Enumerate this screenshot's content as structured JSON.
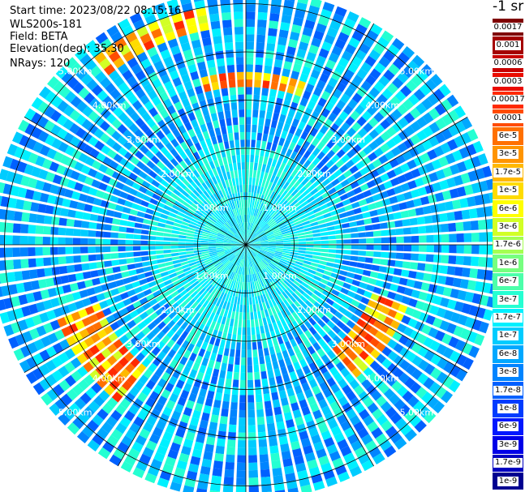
{
  "header": {
    "start_time": "Start time: 2023/08/22 08:15:16",
    "instrument": "WLS200s-181",
    "field": "Field: BETA",
    "elevation": "Elevation(deg): 35.30",
    "nrays": "NRays: 120"
  },
  "colorbar": {
    "title": "-1 sr",
    "levels": [
      {
        "label": "0.0017",
        "color": "#7f0000",
        "text_color": "#ffffff"
      },
      {
        "label": "0.001",
        "color": "#a40000",
        "text_color": "#ffffff"
      },
      {
        "label": "0.0006",
        "color": "#c80000",
        "text_color": "#ffffff"
      },
      {
        "label": "0.0003",
        "color": "#ea0c00",
        "text_color": "#ffffff"
      },
      {
        "label": "0.00017",
        "color": "#ff2a00",
        "text_color": "#000000"
      },
      {
        "label": "0.0001",
        "color": "#ff4c00",
        "text_color": "#000000"
      },
      {
        "label": "6e-5",
        "color": "#ff7000",
        "text_color": "#000000"
      },
      {
        "label": "3e-5",
        "color": "#ff9400",
        "text_color": "#000000"
      },
      {
        "label": "1.7e-5",
        "color": "#ffb800",
        "text_color": "#000000"
      },
      {
        "label": "1e-5",
        "color": "#ffdc00",
        "text_color": "#000000"
      },
      {
        "label": "6e-6",
        "color": "#ffff00",
        "text_color": "#000000"
      },
      {
        "label": "3e-6",
        "color": "#d2ff25",
        "text_color": "#000000"
      },
      {
        "label": "1.7e-6",
        "color": "#a4ff52",
        "text_color": "#000000"
      },
      {
        "label": "1e-6",
        "color": "#77ff80",
        "text_color": "#000000"
      },
      {
        "label": "6e-7",
        "color": "#4cffaa",
        "text_color": "#000000"
      },
      {
        "label": "3e-7",
        "color": "#25ffd2",
        "text_color": "#000000"
      },
      {
        "label": "1.7e-7",
        "color": "#00f0ff",
        "text_color": "#000000"
      },
      {
        "label": "1e-7",
        "color": "#00ccff",
        "text_color": "#000000"
      },
      {
        "label": "6e-8",
        "color": "#00a8ff",
        "text_color": "#000000"
      },
      {
        "label": "3e-8",
        "color": "#0084ff",
        "text_color": "#000000"
      },
      {
        "label": "1.7e-8",
        "color": "#0060ff",
        "text_color": "#000000"
      },
      {
        "label": "1e-8",
        "color": "#003cff",
        "text_color": "#000000"
      },
      {
        "label": "6e-9",
        "color": "#0018ff",
        "text_color": "#000000"
      },
      {
        "label": "3e-9",
        "color": "#0000e8",
        "text_color": "#000000"
      },
      {
        "label": "1.7e-9",
        "color": "#0000c0",
        "text_color": "#ffffff"
      },
      {
        "label": "1e-9",
        "color": "#000090",
        "text_color": "#ffffff"
      }
    ]
  },
  "chart_data": {
    "type": "heatmap",
    "projection": "polar PPI scan",
    "n_rays": 120,
    "field": "BETA",
    "elevation_deg": 35.3,
    "range_rings_km": [
      1.0,
      2.0,
      3.0,
      4.0,
      5.0
    ],
    "ring_labels": [
      "1.00km",
      "2.00km",
      "3.00km",
      "4.00km",
      "5.00km"
    ],
    "radial_lines_deg": [
      0,
      30,
      60,
      90,
      120,
      150,
      180,
      210,
      240,
      270,
      300,
      330
    ],
    "max_range_km": 5.3,
    "grid": true,
    "background_level": "6e-8",
    "features": [
      {
        "description_level": "1e-5 to 0.0006",
        "azimuth_deg_range": [
          320,
          350
        ],
        "range_km": [
          4.5,
          5.0
        ]
      },
      {
        "description_level": "1e-5 to 0.0006",
        "azimuth_deg_range": [
          345,
          20
        ],
        "range_km": [
          3.3,
          3.6
        ]
      },
      {
        "description_level": "1e-5 to 0.0006",
        "azimuth_deg_range": [
          110,
          140
        ],
        "range_km": [
          2.8,
          3.6
        ]
      },
      {
        "description_level": "1e-5 to 0.0006",
        "azimuth_deg_range": [
          220,
          250
        ],
        "range_km": [
          3.2,
          4.2
        ]
      }
    ]
  }
}
